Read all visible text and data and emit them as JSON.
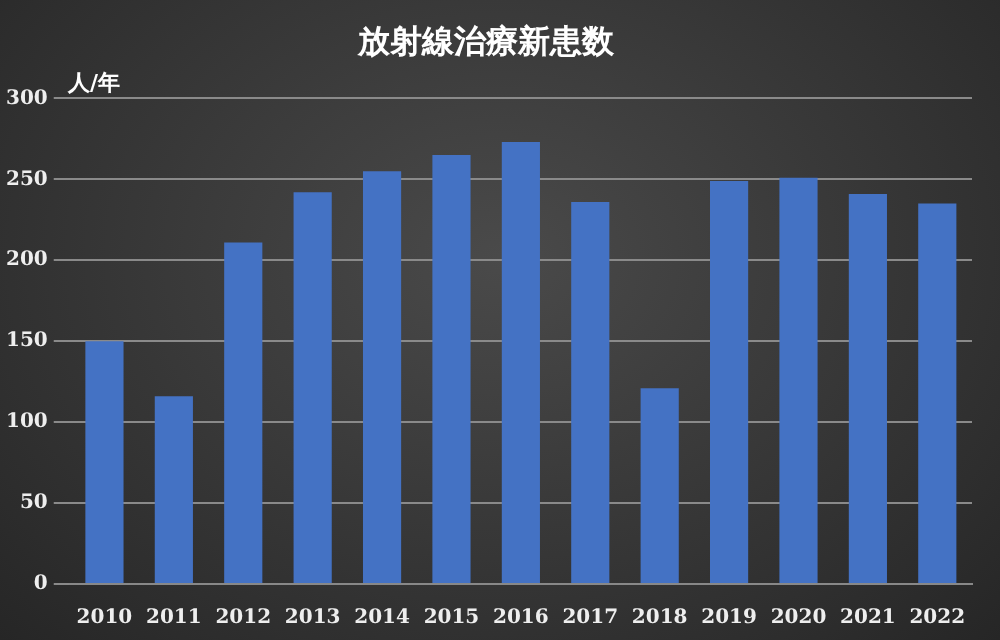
{
  "chart_data": {
    "type": "bar",
    "title": "放射線治療新患数",
    "ylabel": "人/年",
    "categories": [
      "2010",
      "2011",
      "2012",
      "2013",
      "2014",
      "2015",
      "2016",
      "2017",
      "2018",
      "2019",
      "2020",
      "2021",
      "2022"
    ],
    "values": [
      150,
      116,
      211,
      242,
      255,
      265,
      273,
      236,
      121,
      249,
      251,
      241,
      235
    ],
    "color": "#4472c4",
    "ylim": [
      0,
      300
    ],
    "yticks": [
      0,
      50,
      100,
      150,
      200,
      250,
      300
    ],
    "grid": "y"
  }
}
